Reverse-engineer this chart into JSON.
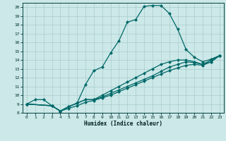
{
  "xlabel": "Humidex (Indice chaleur)",
  "bg_color": "#cce8e8",
  "line_color": "#006868",
  "grid_color": "#aacccc",
  "xlim": [
    -0.5,
    23.5
  ],
  "ylim": [
    8,
    20.5
  ],
  "xticks": [
    0,
    1,
    2,
    3,
    4,
    5,
    6,
    7,
    8,
    9,
    10,
    11,
    12,
    13,
    14,
    15,
    16,
    17,
    18,
    19,
    20,
    21,
    22,
    23
  ],
  "yticks": [
    8,
    9,
    10,
    11,
    12,
    13,
    14,
    15,
    16,
    17,
    18,
    19,
    20
  ],
  "line1_x": [
    0,
    1,
    2,
    3,
    4,
    5,
    6,
    7,
    8,
    9,
    10,
    11,
    12,
    13,
    14,
    15,
    16,
    17,
    18,
    19,
    20,
    21,
    22,
    23
  ],
  "line1_y": [
    9,
    9.5,
    9.5,
    8.8,
    8.2,
    8.7,
    9.1,
    11.2,
    12.8,
    13.2,
    14.8,
    16.2,
    18.3,
    18.6,
    20.1,
    20.2,
    20.2,
    19.3,
    17.5,
    15.2,
    14.3,
    13.8,
    14.1,
    14.5
  ],
  "line2_x": [
    0,
    3,
    4,
    5,
    6,
    7,
    8,
    9,
    10,
    11,
    12,
    13,
    14,
    15,
    16,
    17,
    18,
    19,
    20,
    21,
    22,
    23
  ],
  "line2_y": [
    9,
    8.8,
    8.2,
    8.7,
    9.1,
    9.5,
    9.5,
    10.0,
    10.5,
    11.0,
    11.5,
    12.0,
    12.5,
    13.0,
    13.5,
    13.8,
    14.0,
    14.0,
    13.8,
    13.5,
    14.0,
    14.5
  ],
  "line3_x": [
    0,
    3,
    4,
    5,
    6,
    7,
    8,
    9,
    10,
    11,
    12,
    13,
    14,
    15,
    16,
    17,
    18,
    19,
    20,
    21,
    22,
    23
  ],
  "line3_y": [
    9,
    8.8,
    8.2,
    8.7,
    9.1,
    9.5,
    9.5,
    9.8,
    10.2,
    10.6,
    11.0,
    11.4,
    11.8,
    12.2,
    12.7,
    13.2,
    13.5,
    13.8,
    13.7,
    13.5,
    13.8,
    14.5
  ],
  "line4_x": [
    0,
    3,
    4,
    5,
    6,
    7,
    8,
    9,
    10,
    11,
    12,
    13,
    14,
    15,
    16,
    17,
    18,
    19,
    20,
    21,
    22,
    23
  ],
  "line4_y": [
    9,
    8.8,
    8.2,
    8.5,
    8.8,
    9.2,
    9.4,
    9.7,
    10.0,
    10.4,
    10.8,
    11.2,
    11.6,
    12.0,
    12.4,
    12.8,
    13.1,
    13.4,
    13.5,
    13.4,
    13.8,
    14.5
  ],
  "marker": "D",
  "markersize": 2.5,
  "linewidth": 0.9
}
